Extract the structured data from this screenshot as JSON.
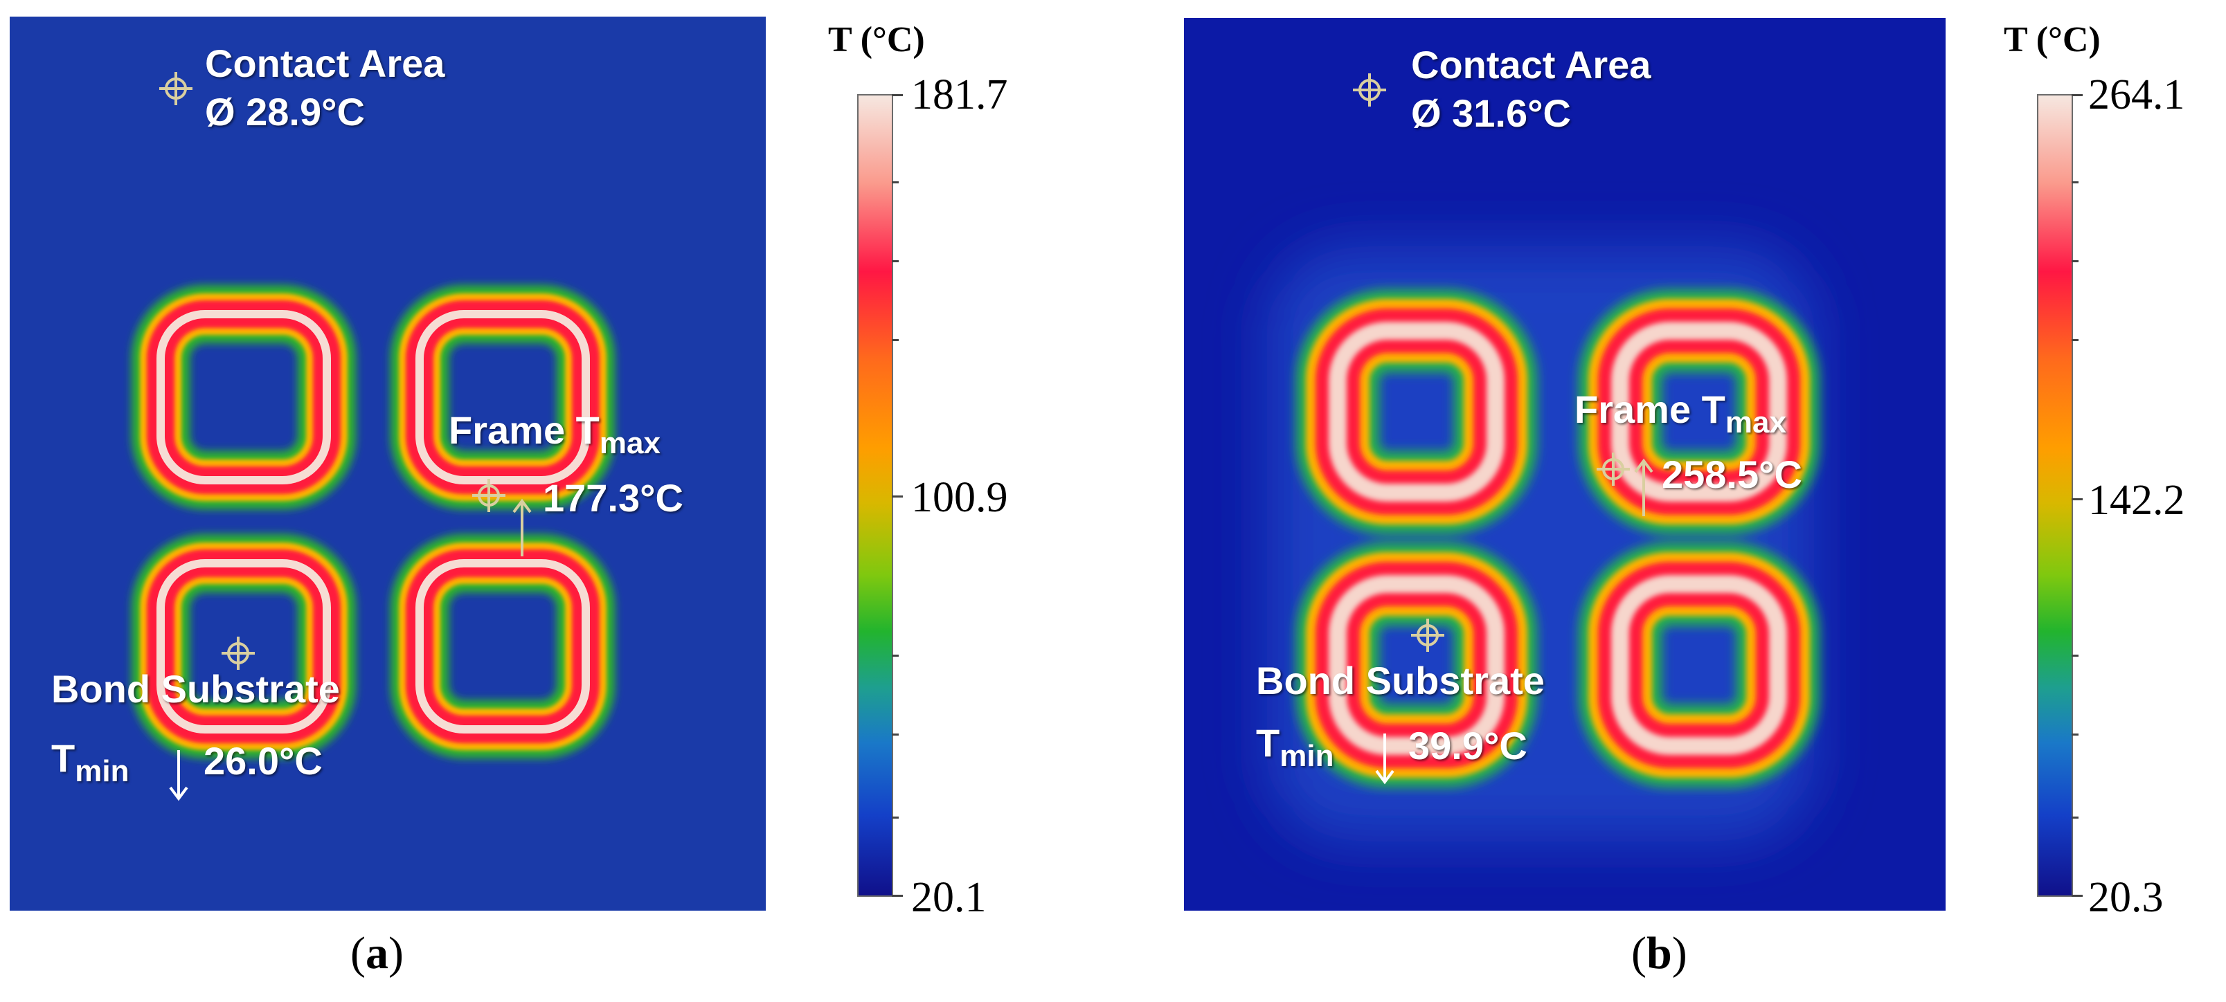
{
  "panels": [
    {
      "caption_open": "(",
      "caption_letter": "a",
      "caption_close": ")",
      "contact_label": "Contact Area",
      "contact_value": "Ø 28.9°C",
      "frame_label": "Frame T",
      "frame_sub": "max",
      "frame_value": "177.3°C",
      "bond_label": "Bond Substrate",
      "tmin_label": "T",
      "tmin_sub": "min",
      "tmin_value": "26.0°C",
      "colorbar": {
        "title": "T (°C)",
        "max": "181.7",
        "mid": "100.9",
        "min": "20.1"
      },
      "background_color": "#1a3aa8"
    },
    {
      "caption_open": "(",
      "caption_letter": "b",
      "caption_close": ")",
      "contact_label": "Contact Area",
      "contact_value": "Ø 31.6°C",
      "frame_label": "Frame T",
      "frame_sub": "max",
      "frame_value": "258.5°C",
      "bond_label": "Bond Substrate",
      "tmin_label": "T",
      "tmin_sub": "min",
      "tmin_value": "39.9°C",
      "colorbar": {
        "title": "T (°C)",
        "max": "264.1",
        "mid": "142.2",
        "min": "20.3"
      },
      "background_color": "#0c1aa6"
    }
  ]
}
